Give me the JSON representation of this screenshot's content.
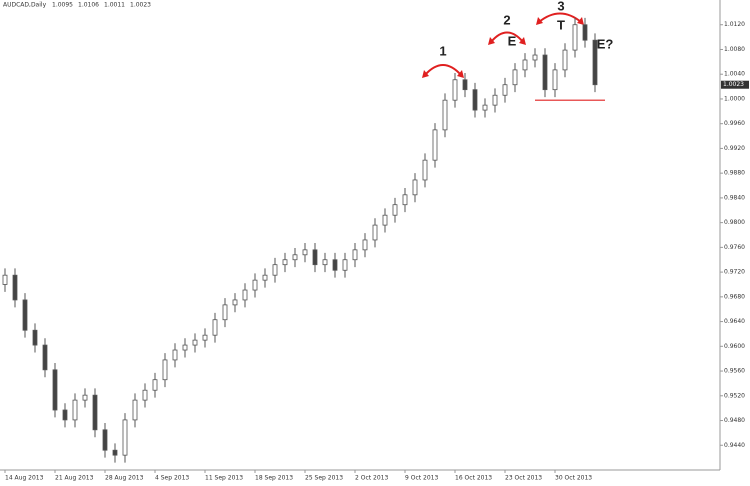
{
  "chart_data": {
    "type": "candlestick",
    "title": "AUDCAD,Daily",
    "categories": [
      "14 Aug 2013",
      null,
      null,
      null,
      null,
      "21 Aug 2013",
      null,
      null,
      null,
      null,
      "28 Aug 2013",
      null,
      null,
      null,
      null,
      "4 Sep 2013",
      null,
      null,
      null,
      null,
      "11 Sep 2013",
      null,
      null,
      null,
      null,
      "18 Sep 2013",
      null,
      null,
      null,
      null,
      "25 Sep 2013",
      null,
      null,
      null,
      null,
      "2 Oct 2013",
      null,
      null,
      null,
      null,
      "9 Oct 2013",
      null,
      null,
      null,
      null,
      "16 Oct 2013",
      null,
      null,
      null,
      null,
      "23 Oct 2013",
      null,
      null,
      null,
      null,
      "30 Oct 2013",
      null,
      null,
      null,
      null
    ],
    "open": [
      0.97,
      0.9715,
      0.9675,
      0.9626,
      0.9602,
      0.9562,
      0.9497,
      0.9481,
      0.9513,
      0.9521,
      0.9465,
      0.9432,
      0.9424,
      0.9481,
      0.9513,
      0.9529,
      0.9546,
      0.9578,
      0.9594,
      0.9602,
      0.961,
      0.9618,
      0.9643,
      0.9667,
      0.9675,
      0.9691,
      0.9707,
      0.9715,
      0.9732,
      0.974,
      0.9748,
      0.9756,
      0.9732,
      0.974,
      0.9723,
      0.974,
      0.9756,
      0.9772,
      0.9796,
      0.9812,
      0.9829,
      0.9845,
      0.9869,
      0.9901,
      0.995,
      0.9998,
      1.0031,
      1.0015,
      0.9982,
      0.999,
      1.0006,
      1.0023,
      1.0047,
      1.0063,
      1.0071,
      1.0015,
      1.0047,
      1.0079,
      1.012,
      1.0095
    ],
    "high": [
      0.9726,
      0.9726,
      0.9686,
      0.9637,
      0.9613,
      0.9573,
      0.9508,
      0.9524,
      0.9532,
      0.9532,
      0.9476,
      0.9443,
      0.9492,
      0.9524,
      0.954,
      0.9557,
      0.9589,
      0.9605,
      0.9613,
      0.9621,
      0.9629,
      0.9654,
      0.9678,
      0.9686,
      0.9702,
      0.9718,
      0.9726,
      0.9743,
      0.9751,
      0.9759,
      0.9767,
      0.9767,
      0.9751,
      0.9751,
      0.9751,
      0.9767,
      0.9783,
      0.9807,
      0.9823,
      0.984,
      0.9856,
      0.988,
      0.9912,
      0.9961,
      1.0009,
      1.0042,
      1.0042,
      1.0026,
      1.0001,
      1.0017,
      1.0034,
      1.0058,
      1.0074,
      1.0082,
      1.0082,
      1.0058,
      1.009,
      1.0131,
      1.0131,
      1.0106
    ],
    "low": [
      0.9688,
      0.9663,
      0.9614,
      0.959,
      0.955,
      0.9485,
      0.9469,
      0.9469,
      0.9501,
      0.9453,
      0.942,
      0.9412,
      0.9412,
      0.9469,
      0.9501,
      0.9517,
      0.9534,
      0.9566,
      0.9582,
      0.959,
      0.9598,
      0.9606,
      0.9631,
      0.9655,
      0.9663,
      0.9679,
      0.9695,
      0.9703,
      0.972,
      0.9728,
      0.9736,
      0.972,
      0.972,
      0.9711,
      0.9711,
      0.9728,
      0.9744,
      0.976,
      0.9784,
      0.98,
      0.9817,
      0.9833,
      0.9857,
      0.9889,
      0.9938,
      0.9986,
      1.0003,
      0.997,
      0.997,
      0.9978,
      0.9994,
      1.0011,
      1.0035,
      1.0051,
      1.0003,
      1.0003,
      1.0035,
      1.0067,
      1.0083,
      1.0011
    ],
    "close": [
      0.9715,
      0.9675,
      0.9626,
      0.9602,
      0.9562,
      0.9497,
      0.9481,
      0.9513,
      0.9521,
      0.9465,
      0.9432,
      0.9424,
      0.9481,
      0.9513,
      0.9529,
      0.9546,
      0.9578,
      0.9594,
      0.9602,
      0.961,
      0.9618,
      0.9643,
      0.9667,
      0.9675,
      0.9691,
      0.9707,
      0.9715,
      0.9732,
      0.974,
      0.9748,
      0.9756,
      0.9732,
      0.974,
      0.9723,
      0.974,
      0.9756,
      0.9772,
      0.9796,
      0.9812,
      0.9829,
      0.9845,
      0.9869,
      0.9901,
      0.995,
      0.9998,
      1.0031,
      1.0015,
      0.9982,
      0.999,
      1.0006,
      1.0023,
      1.0047,
      1.0063,
      1.0071,
      1.0015,
      1.0047,
      1.0079,
      1.012,
      1.0095,
      1.0023
    ],
    "ylim": [
      0.94,
      1.016
    ],
    "yticks": [
      {
        "value": 0.944,
        "label": "0.9440"
      },
      {
        "value": 0.948,
        "label": "0.9480"
      },
      {
        "value": 0.952,
        "label": "0.9520"
      },
      {
        "value": 0.956,
        "label": "0.9560"
      },
      {
        "value": 0.96,
        "label": "0.9600"
      },
      {
        "value": 0.964,
        "label": "0.9640"
      },
      {
        "value": 0.968,
        "label": "0.9680"
      },
      {
        "value": 0.972,
        "label": "0.9720"
      },
      {
        "value": 0.976,
        "label": "0.9760"
      },
      {
        "value": 0.98,
        "label": "0.9800"
      },
      {
        "value": 0.984,
        "label": "0.9840"
      },
      {
        "value": 0.988,
        "label": "0.9880"
      },
      {
        "value": 0.992,
        "label": "0.9920"
      },
      {
        "value": 0.996,
        "label": "0.9960"
      },
      {
        "value": 1.0,
        "label": "1.0000"
      },
      {
        "value": 1.004,
        "label": "1.0040"
      },
      {
        "value": 1.008,
        "label": "1.0080"
      },
      {
        "value": 1.012,
        "label": "1.0120"
      }
    ],
    "support_line": 0.9998,
    "annotations": [
      "1",
      "2",
      "E",
      "3",
      "T",
      "E?"
    ],
    "up_color": "#ffffff",
    "down_color": "#444444",
    "wick_color": "#555555",
    "marker_color": "#e02020"
  }
}
